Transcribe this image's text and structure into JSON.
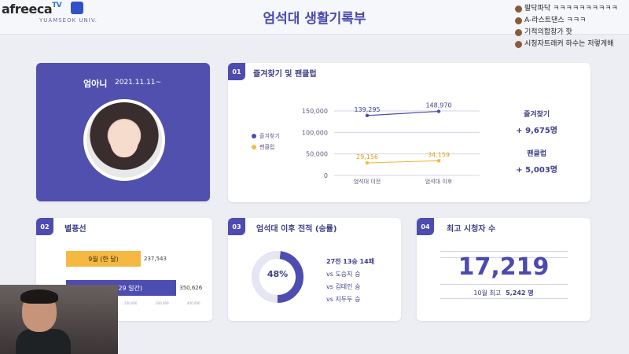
{
  "header": {
    "logo": "afreeca",
    "logo_tv": "TV",
    "university": "YUAMSEOK UNIV.",
    "title": "엄석대 생활기록부"
  },
  "profile": {
    "name": "엄아니",
    "date": "2021.11.11~"
  },
  "favorites_card": {
    "number": "01",
    "title": "즐겨찾기 및 팬클럽",
    "legend": [
      "즐겨찾기",
      "팬클럽"
    ],
    "stat_fav_label": "즐겨찾기",
    "stat_fav_value": "+ 9,675명",
    "stat_fan_label": "팬클럽",
    "stat_fan_value": "+ 5,003명",
    "colors": {
      "favorites": "#4d4cb0",
      "fanclub": "#f5b942"
    }
  },
  "chart_data": {
    "type": "line",
    "x": [
      "엄석대 이전",
      "엄석대 이후"
    ],
    "yticks": [
      "150,000",
      "100,000",
      "50,000",
      "0"
    ],
    "ylim": [
      0,
      150000
    ],
    "series": [
      {
        "name": "즐겨찾기",
        "values": [
          139295,
          148970
        ],
        "labels": [
          "139,295",
          "148,970"
        ]
      },
      {
        "name": "팬클럽",
        "values": [
          29156,
          34159
        ],
        "labels": [
          "29,156",
          "34,159"
        ]
      }
    ]
  },
  "balloon_card": {
    "number": "02",
    "title": "별풍선",
    "bars": [
      {
        "label": "9월 (한 달)",
        "value": 237543,
        "value_label": "237,543",
        "color": "#f5b942"
      },
      {
        "label": "11월 (29 일간)",
        "value": 350626,
        "value_label": "350,626",
        "color": "#4d4cb0"
      }
    ],
    "axis_ticks": [
      "0",
      "100,000",
      "200,000",
      "300,000",
      "400,000"
    ],
    "max": 400000
  },
  "record_card": {
    "number": "03",
    "title": "엄석대 이후 전적 (승률)",
    "win_rate": 48,
    "win_rate_label": "48%",
    "summary": "27전 13승 14패",
    "matches": [
      "vs 도승지 승",
      "vs 김테인 승",
      "vs 지두두 승"
    ]
  },
  "viewers_card": {
    "number": "04",
    "title": "최고 시청자 수",
    "peak": "17,219",
    "prev_label": "10월 최고",
    "prev_value": "5,242 명"
  },
  "chat": [
    "팔닥파닥 ㅋㅋㅋㅋㅋㅋㅋㅋㅋㅋ",
    "A-라스트댄스 ㅋㅋㅋ",
    "기적의합창가 핫",
    "시청자트래커 하수는 저렇게해"
  ]
}
